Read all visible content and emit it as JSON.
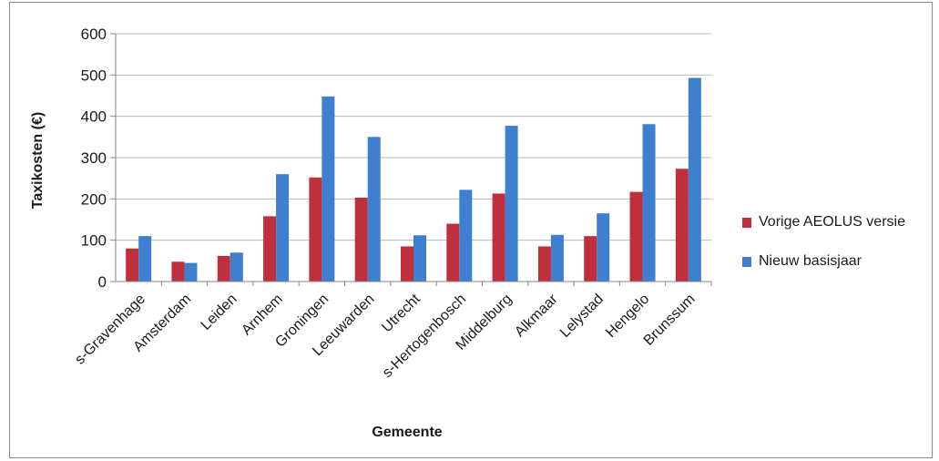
{
  "chart_data": {
    "type": "bar",
    "title": "",
    "xlabel": "Gemeente",
    "ylabel": "Taxikosten (€)",
    "ylim": [
      0,
      600
    ],
    "yticks": [
      0,
      100,
      200,
      300,
      400,
      500,
      600
    ],
    "grid": true,
    "legend_position": "right",
    "categories": [
      "s-Gravenhage",
      "Amsterdam",
      "Leiden",
      "Arnhem",
      "Groningen",
      "Leeuwarden",
      "Utrecht",
      "s-Hertogenbosch",
      "Middelburg",
      "Alkmaar",
      "Lelystad",
      "Hengelo",
      "Brunssum"
    ],
    "series": [
      {
        "name": "Vorige AEOLUS versie",
        "color": "#c0303c",
        "values": [
          80,
          48,
          62,
          158,
          252,
          203,
          85,
          140,
          213,
          85,
          110,
          217,
          273
        ]
      },
      {
        "name": "Nieuw basisjaar",
        "color": "#3f7fd0",
        "values": [
          110,
          45,
          70,
          260,
          448,
          350,
          112,
          222,
          377,
          113,
          165,
          381,
          493
        ]
      }
    ]
  }
}
